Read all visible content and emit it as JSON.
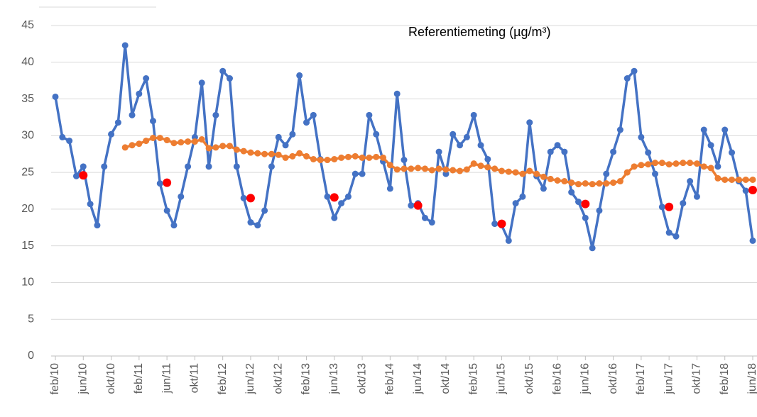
{
  "chart_data": {
    "type": "line",
    "title": "Referentiemeting (µg/m³)",
    "categories": [
      "feb/10",
      null,
      null,
      null,
      "jun/10",
      null,
      null,
      null,
      "okt/10",
      null,
      null,
      null,
      "feb/11",
      null,
      null,
      null,
      "jun/11",
      null,
      null,
      null,
      "okt/11",
      null,
      null,
      null,
      "feb/12",
      null,
      null,
      null,
      "jun/12",
      null,
      null,
      null,
      "okt/12",
      null,
      null,
      null,
      "feb/13",
      null,
      null,
      null,
      "jun/13",
      null,
      null,
      null,
      "okt/13",
      null,
      null,
      null,
      "feb/14",
      null,
      null,
      null,
      "jun/14",
      null,
      null,
      null,
      "okt/14",
      null,
      null,
      null,
      "feb/15",
      null,
      null,
      null,
      "jun/15",
      null,
      null,
      null,
      "okt/15",
      null,
      null,
      null,
      "feb/16",
      null,
      null,
      null,
      "jun/16",
      null,
      null,
      null,
      "okt/16",
      null,
      null,
      null,
      "feb/17",
      null,
      null,
      null,
      "jun/17",
      null,
      null,
      null,
      "okt/17",
      null,
      null,
      null,
      "feb/18",
      null,
      null,
      null,
      "jun/18"
    ],
    "series": [
      {
        "type": "line",
        "color": "#4472c4",
        "values": [
          35.3,
          29.8,
          29.3,
          24.5,
          25.8,
          20.7,
          17.8,
          25.8,
          30.2,
          31.8,
          42.3,
          32.8,
          35.7,
          37.8,
          32.0,
          23.5,
          19.8,
          17.8,
          21.7,
          25.8,
          29.8,
          37.2,
          25.8,
          32.8,
          38.8,
          37.8,
          25.8,
          21.5,
          18.2,
          17.8,
          19.8,
          25.8,
          29.8,
          28.7,
          30.2,
          38.2,
          31.8,
          32.8,
          26.8,
          21.7,
          18.8,
          20.8,
          21.7,
          24.8,
          24.8,
          32.8,
          30.2,
          26.5,
          22.8,
          35.7,
          26.7,
          20.5,
          20.8,
          18.8,
          18.2,
          27.8,
          24.8,
          30.2,
          28.7,
          29.8,
          32.8,
          28.7,
          26.8,
          18.0,
          17.8,
          15.7,
          20.8,
          21.7,
          31.8,
          24.5,
          22.8,
          27.8,
          28.7,
          27.8,
          22.3,
          21.0,
          18.8,
          14.7,
          19.8,
          24.8,
          27.8,
          30.8,
          37.8,
          38.8,
          29.8,
          27.7,
          24.8,
          20.3,
          16.8,
          16.3,
          20.8,
          23.8,
          21.7,
          30.8,
          28.7,
          25.8,
          30.8,
          27.7,
          23.8,
          22.5,
          15.7
        ]
      },
      {
        "type": "line",
        "color": "#ed7d31",
        "values": [
          null,
          null,
          null,
          null,
          null,
          null,
          null,
          null,
          null,
          null,
          28.4,
          28.7,
          28.9,
          29.3,
          29.7,
          29.7,
          29.4,
          29.0,
          29.1,
          29.2,
          29.2,
          29.5,
          28.3,
          28.4,
          28.6,
          28.6,
          28.1,
          27.9,
          27.7,
          27.6,
          27.5,
          27.5,
          27.4,
          27.0,
          27.2,
          27.6,
          27.2,
          26.8,
          26.7,
          26.7,
          26.8,
          27.0,
          27.1,
          27.2,
          27.0,
          27.0,
          27.1,
          27.0,
          26.0,
          25.4,
          25.5,
          25.5,
          25.6,
          25.5,
          25.3,
          25.5,
          25.4,
          25.3,
          25.2,
          25.4,
          26.2,
          25.9,
          25.7,
          25.5,
          25.2,
          25.1,
          25.0,
          24.8,
          25.2,
          24.8,
          24.4,
          24.1,
          23.9,
          23.8,
          23.6,
          23.4,
          23.5,
          23.4,
          23.5,
          23.5,
          23.6,
          23.8,
          25.0,
          25.8,
          26.0,
          26.1,
          26.3,
          26.3,
          26.1,
          26.2,
          26.3,
          26.3,
          26.2,
          25.8,
          25.6,
          24.2,
          24.0,
          24.0,
          24.0,
          24.0,
          24.0
        ]
      },
      {
        "type": "scatter",
        "color": "#ff0000",
        "values": [
          null,
          null,
          null,
          null,
          24.6,
          null,
          null,
          null,
          null,
          null,
          null,
          null,
          null,
          null,
          null,
          null,
          23.6,
          null,
          null,
          null,
          null,
          null,
          null,
          null,
          null,
          null,
          null,
          null,
          21.5,
          null,
          null,
          null,
          null,
          null,
          null,
          null,
          null,
          null,
          null,
          null,
          21.6,
          null,
          null,
          null,
          null,
          null,
          null,
          null,
          null,
          null,
          null,
          null,
          20.5,
          null,
          null,
          null,
          null,
          null,
          null,
          null,
          null,
          null,
          null,
          null,
          18.0,
          null,
          null,
          null,
          null,
          null,
          null,
          null,
          null,
          null,
          null,
          null,
          20.7,
          null,
          null,
          null,
          null,
          null,
          null,
          null,
          null,
          null,
          null,
          null,
          20.3,
          null,
          null,
          null,
          null,
          null,
          null,
          null,
          null,
          null,
          null,
          null,
          22.6
        ]
      }
    ],
    "ylim": [
      0,
      45
    ],
    "yticks": [
      0,
      5,
      10,
      15,
      20,
      25,
      30,
      35,
      40,
      45
    ],
    "grid": true
  }
}
